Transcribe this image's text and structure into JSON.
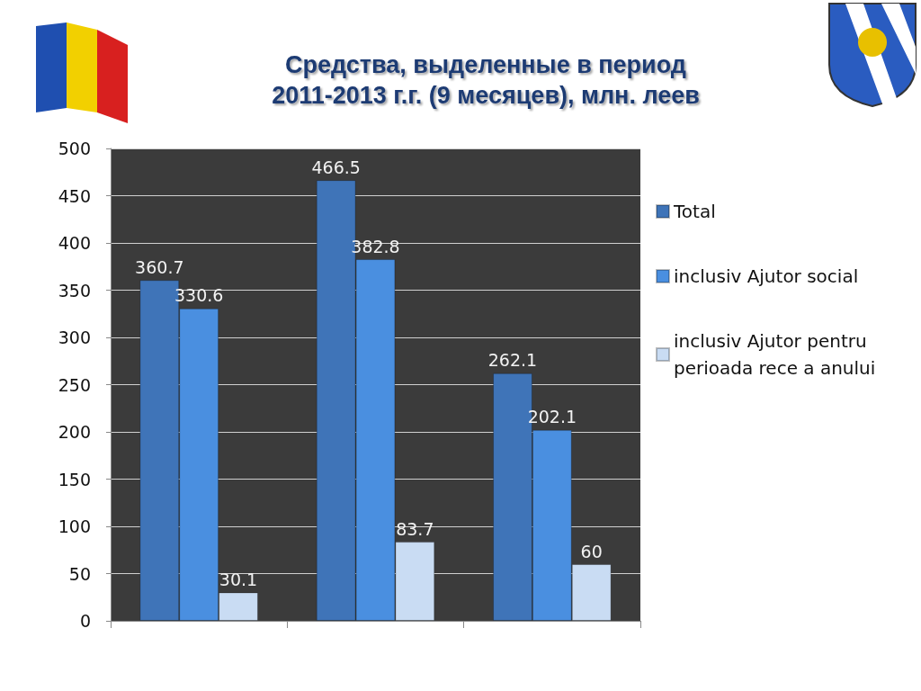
{
  "chart_data": {
    "type": "bar",
    "title": "Средства, выделенные в период\n2011-2013 г.г. (9 месяцев), млн. леев",
    "categories": [
      null,
      null,
      null
    ],
    "series": [
      {
        "name": "Total",
        "color": "#3f74b8",
        "values": [
          360.7,
          466.5,
          262.1
        ]
      },
      {
        "name": "inclusiv Ajutor social",
        "color": "#4a8fe0",
        "values": [
          330.6,
          382.8,
          202.1
        ]
      },
      {
        "name": "inclusiv Ajutor pentru perioada rece a anului",
        "color": "#c9dcf3",
        "values": [
          30.1,
          83.7,
          60
        ]
      }
    ],
    "ylim": [
      0,
      500
    ],
    "yticks": [
      0,
      50,
      100,
      150,
      200,
      250,
      300,
      350,
      400,
      450,
      500
    ],
    "grid": "y",
    "legend": "right",
    "data_labels": true
  }
}
